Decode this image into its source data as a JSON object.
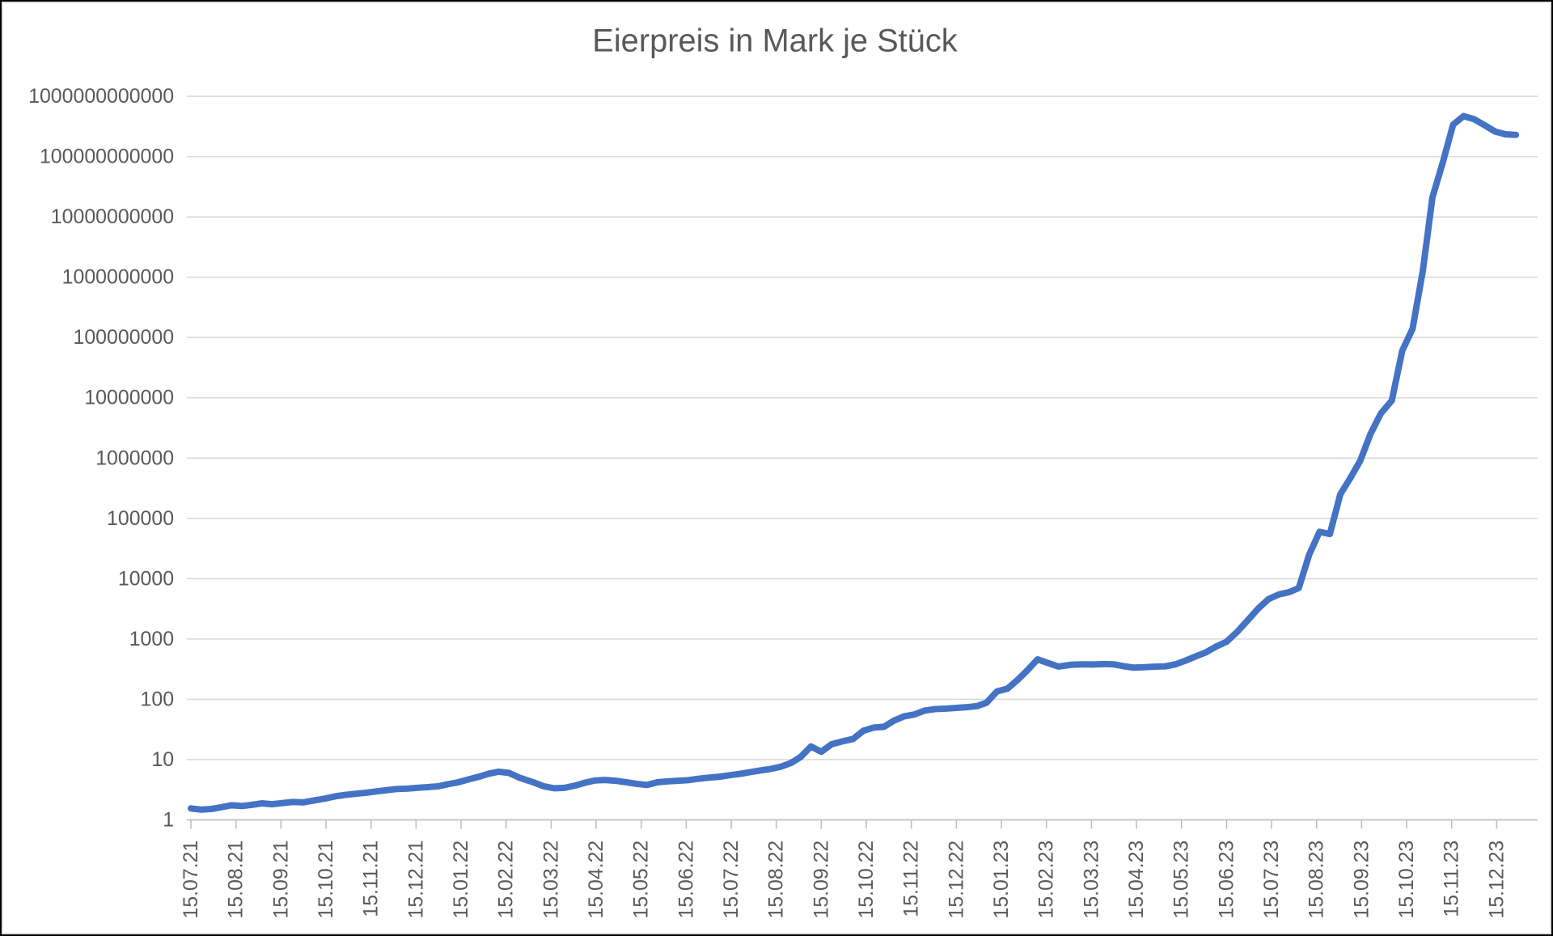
{
  "colors": {
    "line": "#4472C4",
    "gridline": "#D9D9D9",
    "axis_line": "#BFBFBF",
    "tick": "#BFBFBF",
    "axis_label": "#595959",
    "title": "#595959",
    "background": "#FFFFFF"
  },
  "chart_data": {
    "type": "line",
    "title": "Eierpreis in Mark je Stück",
    "xlabel": "",
    "ylabel": "",
    "legend": "none",
    "grid": true,
    "y_axis": {
      "scale": "log",
      "min": 1,
      "max": 1000000000000
    },
    "x_label_rotation": -90,
    "y_ticks": [
      "1",
      "10",
      "100",
      "1000",
      "10000",
      "100000",
      "1000000",
      "10000000",
      "100000000",
      "1000000000",
      "10000000000",
      "100000000000",
      "1000000000000"
    ],
    "x_ticks": [
      "15.07.21",
      "15.08.21",
      "15.09.21",
      "15.10.21",
      "15.11.21",
      "15.12.21",
      "15.01.22",
      "15.02.22",
      "15.03.22",
      "15.04.22",
      "15.05.22",
      "15.06.22",
      "15.07.22",
      "15.08.22",
      "15.09.22",
      "15.10.22",
      "15.11.22",
      "15.12.22",
      "15.01.23",
      "15.02.23",
      "15.03.23",
      "15.04.23",
      "15.05.23",
      "15.06.23",
      "15.07.23",
      "15.08.23",
      "15.09.23",
      "15.10.23",
      "15.11.23",
      "15.12.23"
    ],
    "series": [
      {
        "points": [
          [
            "15.07.21",
            1.55
          ],
          [
            "22.07.21",
            1.48
          ],
          [
            "29.07.21",
            1.52
          ],
          [
            "05.08.21",
            1.62
          ],
          [
            "12.08.21",
            1.75
          ],
          [
            "19.08.21",
            1.7
          ],
          [
            "26.08.21",
            1.78
          ],
          [
            "02.09.21",
            1.88
          ],
          [
            "09.09.21",
            1.82
          ],
          [
            "16.09.21",
            1.9
          ],
          [
            "23.09.21",
            1.98
          ],
          [
            "30.09.21",
            1.95
          ],
          [
            "07.10.21",
            2.1
          ],
          [
            "14.10.21",
            2.25
          ],
          [
            "21.10.21",
            2.45
          ],
          [
            "28.10.21",
            2.6
          ],
          [
            "04.11.21",
            2.7
          ],
          [
            "11.11.21",
            2.8
          ],
          [
            "18.11.21",
            2.95
          ],
          [
            "25.11.21",
            3.1
          ],
          [
            "02.12.21",
            3.25
          ],
          [
            "09.12.21",
            3.3
          ],
          [
            "16.12.21",
            3.4
          ],
          [
            "23.12.21",
            3.5
          ],
          [
            "30.12.21",
            3.6
          ],
          [
            "06.01.22",
            3.9
          ],
          [
            "13.01.22",
            4.2
          ],
          [
            "20.01.22",
            4.7
          ],
          [
            "27.01.22",
            5.2
          ],
          [
            "03.02.22",
            5.8
          ],
          [
            "10.02.22",
            6.3
          ],
          [
            "17.02.22",
            6.0
          ],
          [
            "24.02.22",
            5.0
          ],
          [
            "03.03.22",
            4.2
          ],
          [
            "10.03.22",
            3.6
          ],
          [
            "17.03.22",
            3.35
          ],
          [
            "24.03.22",
            3.4
          ],
          [
            "31.03.22",
            3.7
          ],
          [
            "07.04.22",
            4.1
          ],
          [
            "14.04.22",
            4.5
          ],
          [
            "21.04.22",
            4.6
          ],
          [
            "28.04.22",
            4.45
          ],
          [
            "05.05.22",
            4.2
          ],
          [
            "12.05.22",
            3.95
          ],
          [
            "19.05.22",
            3.8
          ],
          [
            "26.05.22",
            4.2
          ],
          [
            "02.06.22",
            4.35
          ],
          [
            "09.06.22",
            4.45
          ],
          [
            "16.06.22",
            4.55
          ],
          [
            "23.06.22",
            4.8
          ],
          [
            "30.06.22",
            5.0
          ],
          [
            "07.07.22",
            5.2
          ],
          [
            "14.07.22",
            5.5
          ],
          [
            "21.07.22",
            5.8
          ],
          [
            "28.07.22",
            6.2
          ],
          [
            "04.08.22",
            6.6
          ],
          [
            "11.08.22",
            7.0
          ],
          [
            "18.08.22",
            7.6
          ],
          [
            "25.08.22",
            8.8
          ],
          [
            "01.09.22",
            11.0
          ],
          [
            "08.09.22",
            16.5
          ],
          [
            "15.09.22",
            13.5
          ],
          [
            "22.09.22",
            18
          ],
          [
            "29.09.22",
            20
          ],
          [
            "06.10.22",
            22
          ],
          [
            "13.10.22",
            30
          ],
          [
            "20.10.22",
            34
          ],
          [
            "27.10.22",
            35
          ],
          [
            "03.11.22",
            44
          ],
          [
            "10.11.22",
            52
          ],
          [
            "17.11.22",
            56
          ],
          [
            "24.11.22",
            65
          ],
          [
            "01.12.22",
            69
          ],
          [
            "08.12.22",
            70
          ],
          [
            "15.12.22",
            72
          ],
          [
            "22.12.22",
            74
          ],
          [
            "29.12.22",
            77
          ],
          [
            "05.01.23",
            88
          ],
          [
            "12.01.23",
            135
          ],
          [
            "19.01.23",
            150
          ],
          [
            "26.01.23",
            210
          ],
          [
            "02.02.23",
            300
          ],
          [
            "09.02.23",
            460
          ],
          [
            "16.02.23",
            400
          ],
          [
            "23.02.23",
            350
          ],
          [
            "02.03.23",
            375
          ],
          [
            "09.03.23",
            380
          ],
          [
            "16.03.23",
            378
          ],
          [
            "23.03.23",
            385
          ],
          [
            "30.03.23",
            380
          ],
          [
            "06.04.23",
            355
          ],
          [
            "13.04.23",
            335
          ],
          [
            "20.04.23",
            340
          ],
          [
            "27.04.23",
            348
          ],
          [
            "04.05.23",
            352
          ],
          [
            "11.05.23",
            380
          ],
          [
            "18.05.23",
            440
          ],
          [
            "25.05.23",
            520
          ],
          [
            "01.06.23",
            600
          ],
          [
            "08.06.23",
            750
          ],
          [
            "15.06.23",
            900
          ],
          [
            "22.06.23",
            1300
          ],
          [
            "29.06.23",
            2000
          ],
          [
            "06.07.23",
            3200
          ],
          [
            "13.07.23",
            4600
          ],
          [
            "20.07.23",
            5500
          ],
          [
            "27.07.23",
            6000
          ],
          [
            "03.08.23",
            7000
          ],
          [
            "10.08.23",
            25000
          ],
          [
            "17.08.23",
            60000
          ],
          [
            "24.08.23",
            55000
          ],
          [
            "31.08.23",
            250000
          ],
          [
            "07.09.23",
            450000
          ],
          [
            "14.09.23",
            900000
          ],
          [
            "21.09.23",
            2500000
          ],
          [
            "28.09.23",
            5500000
          ],
          [
            "05.10.23",
            9000000
          ],
          [
            "12.10.23",
            60000000
          ],
          [
            "19.10.23",
            140000000
          ],
          [
            "26.10.23",
            1300000000
          ],
          [
            "02.11.23",
            21000000000
          ],
          [
            "09.11.23",
            80000000000
          ],
          [
            "16.11.23",
            340000000000
          ],
          [
            "23.11.23",
            470000000000
          ],
          [
            "30.11.23",
            420000000000
          ],
          [
            "07.12.23",
            330000000000
          ],
          [
            "14.12.23",
            260000000000
          ],
          [
            "21.12.23",
            235000000000
          ],
          [
            "28.12.23",
            230000000000
          ]
        ]
      }
    ]
  }
}
